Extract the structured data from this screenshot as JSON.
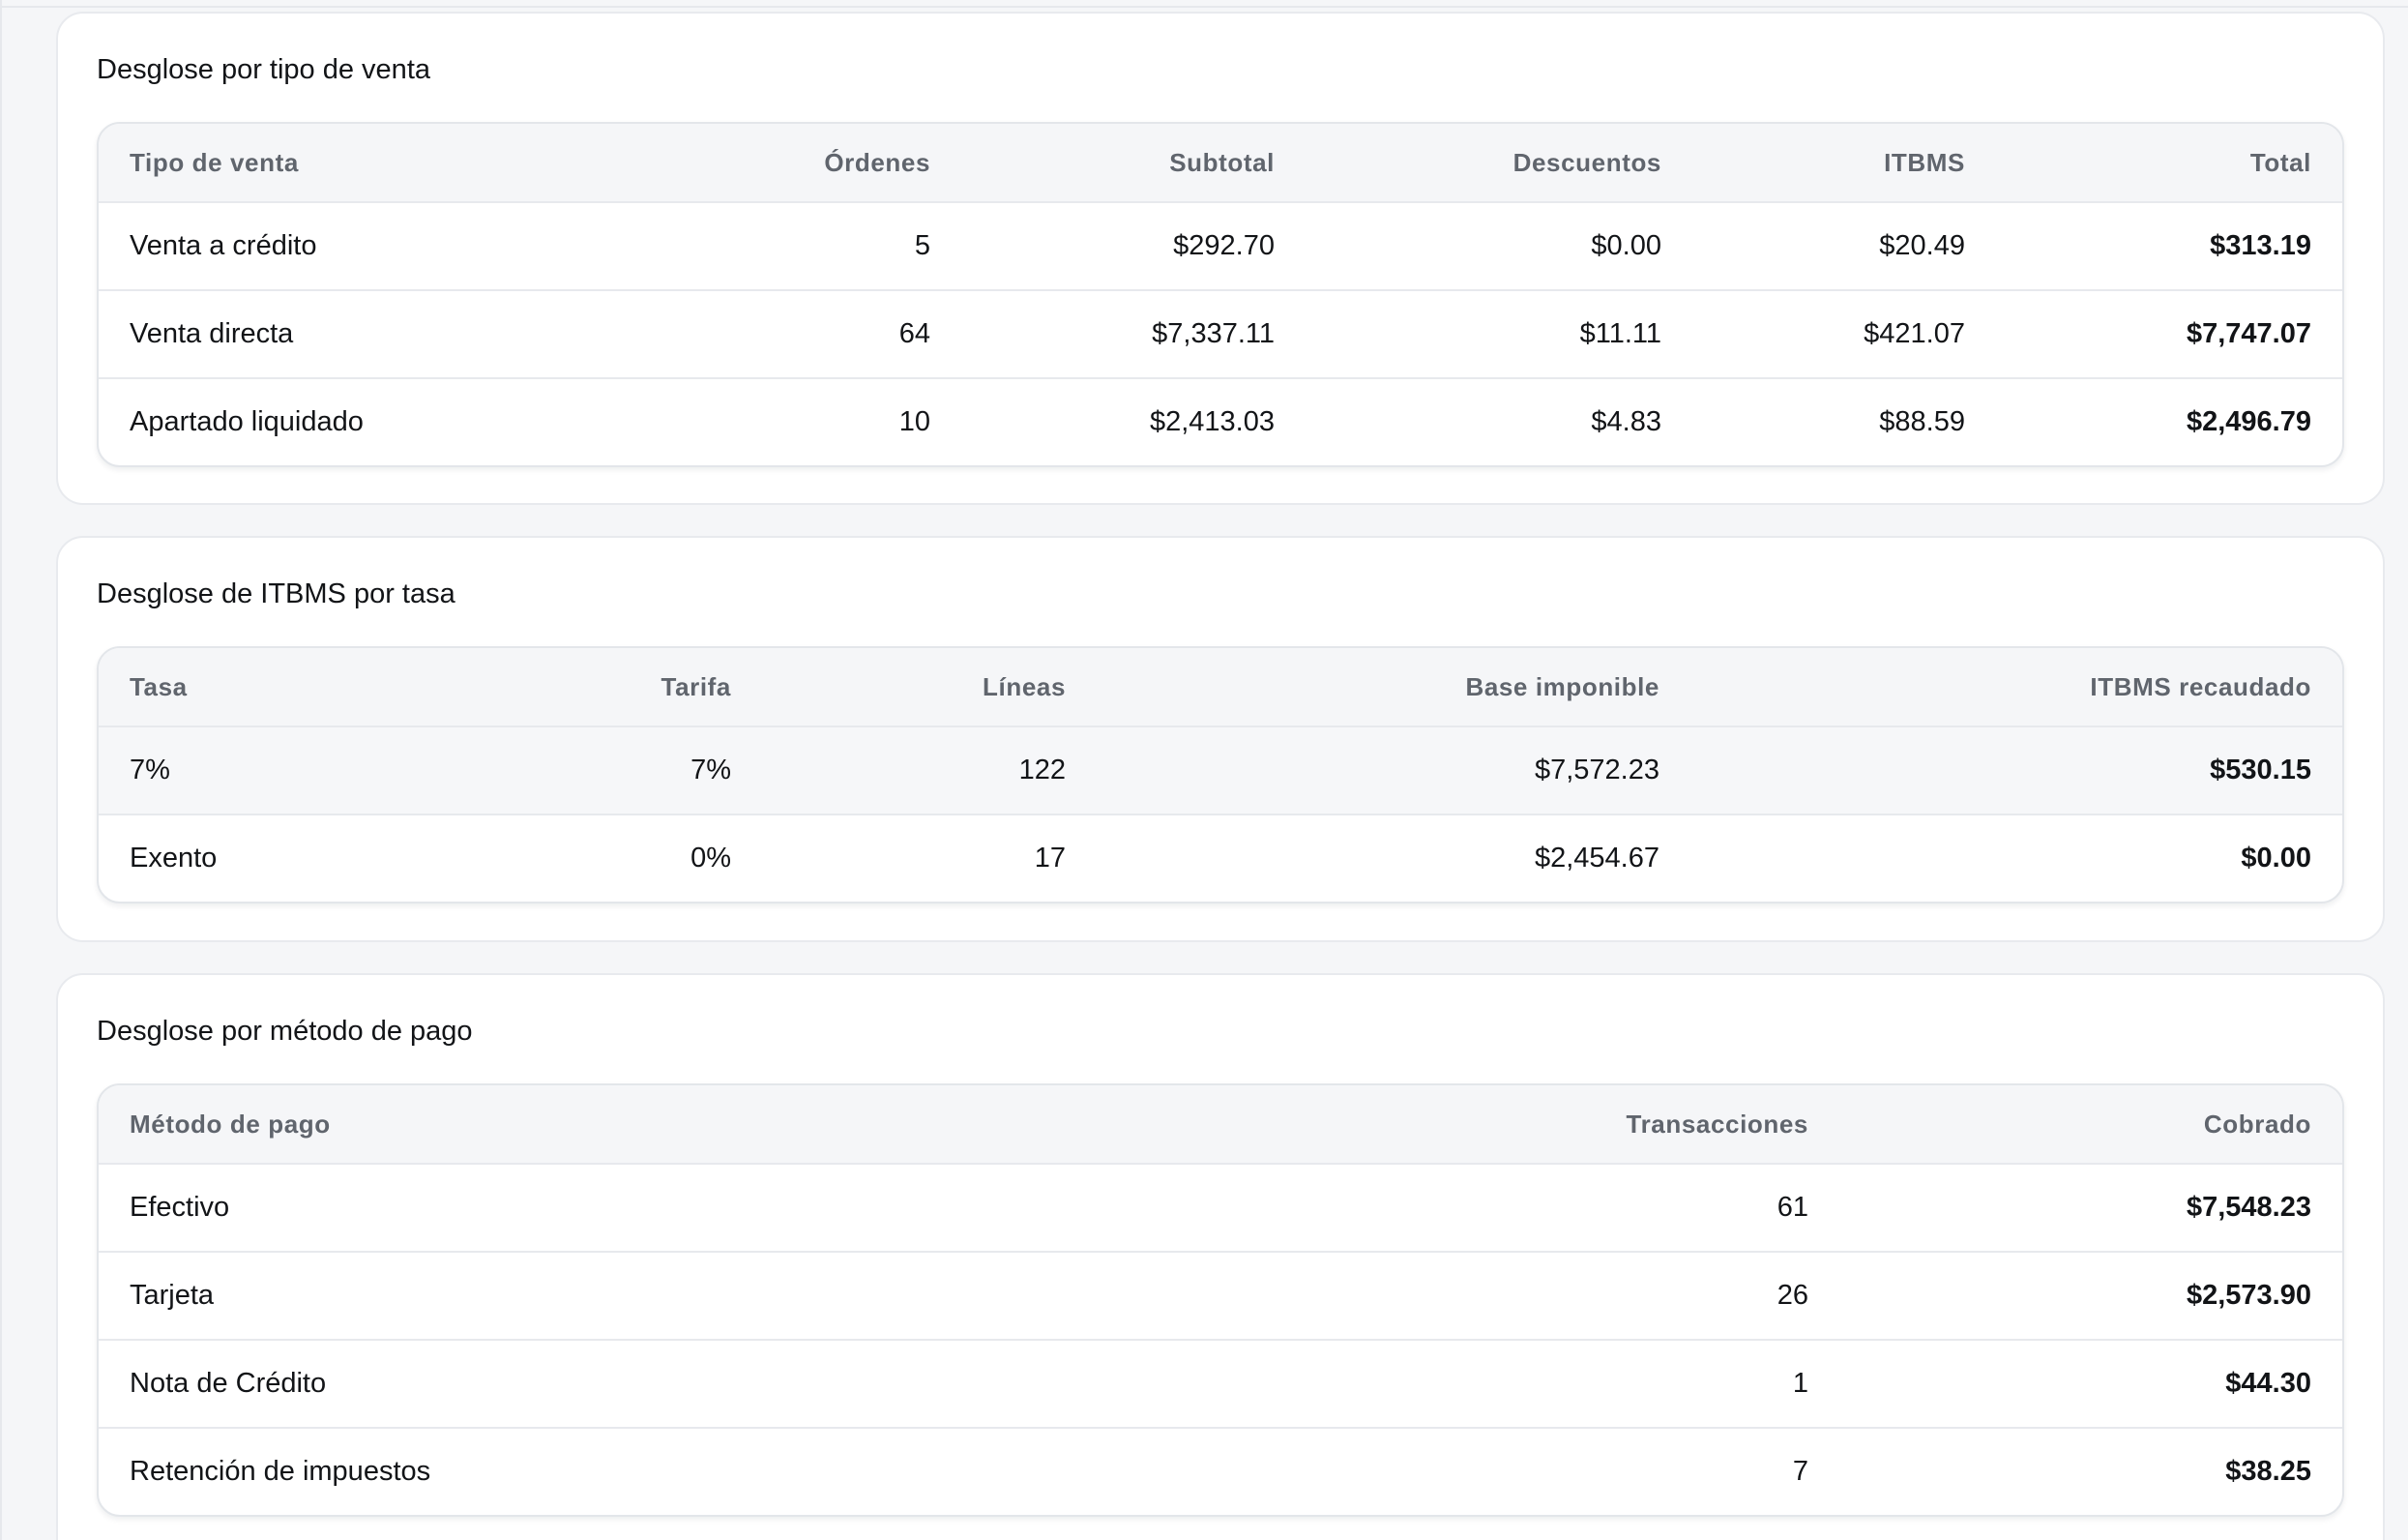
{
  "sales_by_type": {
    "title": "Desglose por tipo de venta",
    "headers": [
      "Tipo de venta",
      "Órdenes",
      "Subtotal",
      "Descuentos",
      "ITBMS",
      "Total"
    ],
    "rows": [
      [
        "Venta a crédito",
        "5",
        "$292.70",
        "$0.00",
        "$20.49",
        "$313.19"
      ],
      [
        "Venta directa",
        "64",
        "$7,337.11",
        "$11.11",
        "$421.07",
        "$7,747.07"
      ],
      [
        "Apartado liquidado",
        "10",
        "$2,413.03",
        "$4.83",
        "$88.59",
        "$2,496.79"
      ]
    ]
  },
  "itbms_by_rate": {
    "title": "Desglose de ITBMS por tasa",
    "headers": [
      "Tasa",
      "Tarifa",
      "Líneas",
      "Base imponible",
      "ITBMS recaudado"
    ],
    "rows": [
      [
        "7%",
        "7%",
        "122",
        "$7,572.23",
        "$530.15"
      ],
      [
        "Exento",
        "0%",
        "17",
        "$2,454.67",
        "$0.00"
      ]
    ]
  },
  "payment_methods": {
    "title": "Desglose por método de pago",
    "headers": [
      "Método de pago",
      "Transacciones",
      "Cobrado"
    ],
    "rows": [
      [
        "Efectivo",
        "61",
        "$7,548.23"
      ],
      [
        "Tarjeta",
        "26",
        "$2,573.90"
      ],
      [
        "Nota de Crédito",
        "1",
        "$44.30"
      ],
      [
        "Retención de impuestos",
        "7",
        "$38.25"
      ]
    ]
  }
}
